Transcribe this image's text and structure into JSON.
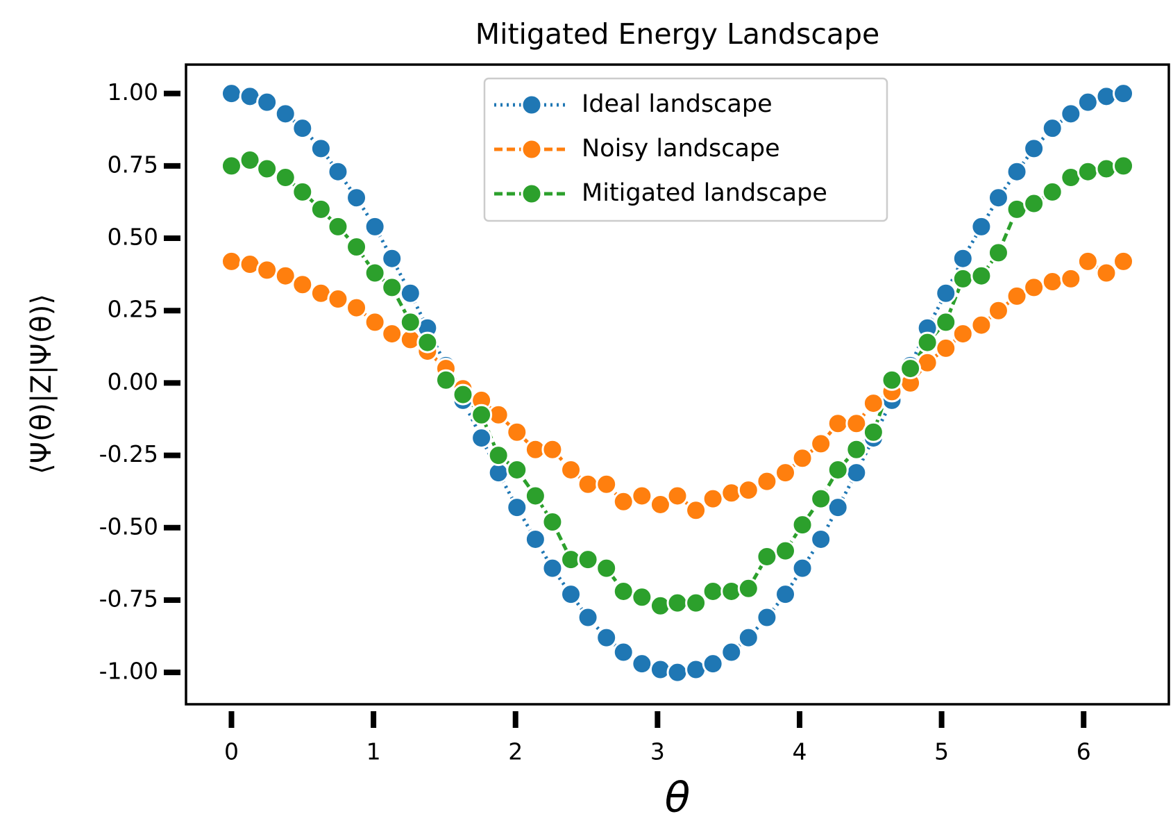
{
  "chart_data": {
    "type": "line",
    "title": "Mitigated Energy Landscape",
    "x_label": "θ",
    "y_label": "⟨Ψ(θ)|Z|Ψ(θ)⟩",
    "x": [
      0,
      0.13,
      0.25,
      0.38,
      0.5,
      0.63,
      0.75,
      0.88,
      1.01,
      1.13,
      1.26,
      1.38,
      1.51,
      1.63,
      1.76,
      1.88,
      2.01,
      2.14,
      2.26,
      2.39,
      2.51,
      2.64,
      2.76,
      2.89,
      3.02,
      3.14,
      3.27,
      3.39,
      3.52,
      3.64,
      3.77,
      3.9,
      4.02,
      4.15,
      4.27,
      4.4,
      4.52,
      4.65,
      4.78,
      4.9,
      5.03,
      5.15,
      5.28,
      5.4,
      5.53,
      5.65,
      5.78,
      5.91,
      6.03,
      6.16,
      6.28
    ],
    "series": [
      {
        "name": "Ideal landscape",
        "color": "#1f77b4",
        "dash": "3,6",
        "values": [
          1.0,
          0.99,
          0.97,
          0.93,
          0.88,
          0.81,
          0.73,
          0.64,
          0.54,
          0.43,
          0.31,
          0.19,
          0.06,
          -0.06,
          -0.19,
          -0.31,
          -0.43,
          -0.54,
          -0.64,
          -0.73,
          -0.81,
          -0.88,
          -0.93,
          -0.97,
          -0.99,
          -1.0,
          -0.99,
          -0.97,
          -0.93,
          -0.88,
          -0.81,
          -0.73,
          -0.64,
          -0.54,
          -0.43,
          -0.31,
          -0.19,
          -0.06,
          0.06,
          0.19,
          0.31,
          0.43,
          0.54,
          0.64,
          0.73,
          0.81,
          0.88,
          0.93,
          0.97,
          0.99,
          1.0
        ]
      },
      {
        "name": "Noisy landscape",
        "color": "#ff7f0e",
        "dash": "12,6",
        "values": [
          0.42,
          0.41,
          0.39,
          0.37,
          0.34,
          0.31,
          0.29,
          0.26,
          0.21,
          0.17,
          0.15,
          0.11,
          0.05,
          -0.02,
          -0.06,
          -0.11,
          -0.17,
          -0.23,
          -0.23,
          -0.3,
          -0.35,
          -0.35,
          -0.41,
          -0.39,
          -0.42,
          -0.39,
          -0.44,
          -0.4,
          -0.38,
          -0.37,
          -0.34,
          -0.31,
          -0.26,
          -0.21,
          -0.14,
          -0.14,
          -0.07,
          -0.03,
          0.0,
          0.07,
          0.12,
          0.17,
          0.2,
          0.25,
          0.3,
          0.33,
          0.35,
          0.36,
          0.42,
          0.38,
          0.42
        ]
      },
      {
        "name": "Mitigated landscape",
        "color": "#2ca02c",
        "dash": "12,6",
        "values": [
          0.75,
          0.77,
          0.74,
          0.71,
          0.66,
          0.6,
          0.54,
          0.47,
          0.38,
          0.33,
          0.21,
          0.14,
          0.01,
          -0.04,
          -0.11,
          -0.25,
          -0.3,
          -0.39,
          -0.48,
          -0.61,
          -0.61,
          -0.64,
          -0.72,
          -0.74,
          -0.77,
          -0.76,
          -0.76,
          -0.72,
          -0.72,
          -0.71,
          -0.6,
          -0.58,
          -0.49,
          -0.4,
          -0.3,
          -0.23,
          -0.17,
          0.01,
          0.05,
          0.14,
          0.21,
          0.36,
          0.37,
          0.45,
          0.6,
          0.62,
          0.66,
          0.71,
          0.73,
          0.74,
          0.75
        ]
      }
    ],
    "xlim": [
      -0.32,
      6.6
    ],
    "ylim": [
      -1.11,
      1.1
    ],
    "xticks": [
      0,
      1,
      2,
      3,
      4,
      5,
      6
    ],
    "yticks": [
      {
        "value": 1.0,
        "label": "1.00"
      },
      {
        "value": 0.75,
        "label": "0.75"
      },
      {
        "value": 0.5,
        "label": "0.50"
      },
      {
        "value": 0.25,
        "label": "0.25"
      },
      {
        "value": 0.0,
        "label": "0.00"
      },
      {
        "value": -0.25,
        "label": "-0.25"
      },
      {
        "value": -0.5,
        "label": "-0.50"
      },
      {
        "value": -0.75,
        "label": "-0.75"
      },
      {
        "value": -1.0,
        "label": "-1.00"
      }
    ],
    "grid": false,
    "legend": "upper center"
  }
}
